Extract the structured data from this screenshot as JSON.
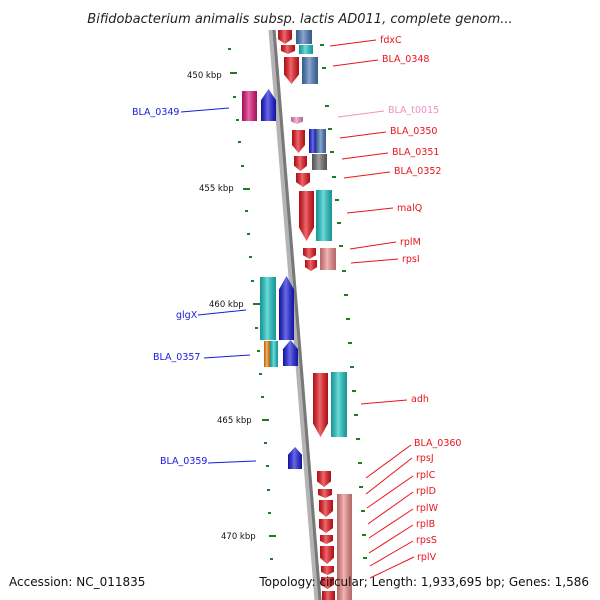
{
  "title": "Bifidobacterium animalis subsp. lactis AD011, complete genom...",
  "footer": {
    "accession": "Accession: NC_011835",
    "summary": "Topology: circular; Length: 1,933,695 bp; Genes: 1,586"
  },
  "colors": {
    "red": "#e8141c",
    "blue": "#1a1adc",
    "pink": "#f090c0",
    "magenta": "#e0147a",
    "cyan": "#1ec8c8",
    "steelblue": "#4a78b8",
    "orange": "#f08c14",
    "gray": "#6e6e6e",
    "salmon": "#f08c8c",
    "tick": "#1e7d1e"
  },
  "kbp_labels": [
    "450 kbp",
    "455 kbp",
    "460 kbp",
    "465 kbp",
    "470 kbp"
  ],
  "gene_labels": [
    {
      "id": "fdxC",
      "text": "fdxC",
      "color": "red"
    },
    {
      "id": "BLA_0348",
      "text": "BLA_0348",
      "color": "red"
    },
    {
      "id": "BLA_0349",
      "text": "BLA_0349",
      "color": "blue"
    },
    {
      "id": "BLA_t0015",
      "text": "BLA_t0015",
      "color": "pink"
    },
    {
      "id": "BLA_0350",
      "text": "BLA_0350",
      "color": "red"
    },
    {
      "id": "BLA_0351",
      "text": "BLA_0351",
      "color": "red"
    },
    {
      "id": "BLA_0352",
      "text": "BLA_0352",
      "color": "red"
    },
    {
      "id": "malQ",
      "text": "malQ",
      "color": "red"
    },
    {
      "id": "rplM",
      "text": "rplM",
      "color": "red"
    },
    {
      "id": "rpsI",
      "text": "rpsI",
      "color": "red"
    },
    {
      "id": "glgX",
      "text": "glgX",
      "color": "blue"
    },
    {
      "id": "BLA_0357",
      "text": "BLA_0357",
      "color": "blue"
    },
    {
      "id": "adh",
      "text": "adh",
      "color": "red"
    },
    {
      "id": "BLA_0359",
      "text": "BLA_0359",
      "color": "blue"
    },
    {
      "id": "BLA_0360",
      "text": "BLA_0360",
      "color": "red"
    },
    {
      "id": "rpsJ",
      "text": "rpsJ",
      "color": "red"
    },
    {
      "id": "rplC",
      "text": "rplC",
      "color": "red"
    },
    {
      "id": "rplD",
      "text": "rplD",
      "color": "red"
    },
    {
      "id": "rplW",
      "text": "rplW",
      "color": "red"
    },
    {
      "id": "rplB",
      "text": "rplB",
      "color": "red"
    },
    {
      "id": "rpsS",
      "text": "rpsS",
      "color": "red"
    },
    {
      "id": "rplV",
      "text": "rplV",
      "color": "red"
    }
  ]
}
